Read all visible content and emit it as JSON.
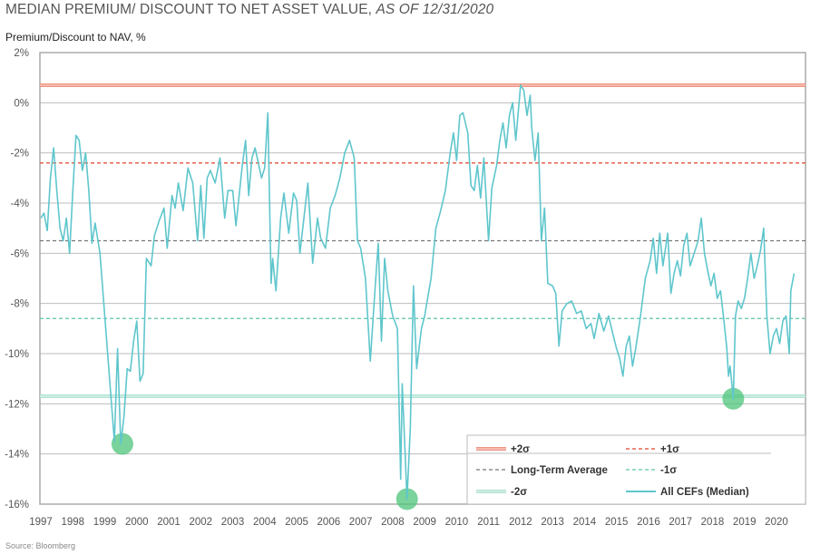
{
  "title": {
    "main": "MEDIAN PREMIUM/ DISCOUNT TO NET ASSET VALUE, ",
    "italic": "AS OF 12/31/2020"
  },
  "source": "Source: Bloomberg",
  "chart_data": {
    "type": "line",
    "title": "MEDIAN PREMIUM/ DISCOUNT TO NET ASSET VALUE, AS OF 12/31/2020",
    "ylabel": "Premium/Discount to NAV, %",
    "xlabel": "",
    "ylim": [
      -16,
      2
    ],
    "xlim": [
      1997,
      2020.9
    ],
    "grid": true,
    "legend_position": "bottom-right",
    "y_ticks": [
      "2%",
      "0%",
      "-2%",
      "-4%",
      "-6%",
      "-8%",
      "-10%",
      "-12%",
      "-14%",
      "-16%"
    ],
    "y_tick_values": [
      2,
      0,
      -2,
      -4,
      -6,
      -8,
      -10,
      -12,
      -14,
      -16
    ],
    "x_ticks": [
      "1997",
      "1998",
      "1999",
      "2000",
      "2001",
      "2002",
      "2003",
      "2004",
      "2005",
      "2006",
      "2007",
      "2008",
      "2009",
      "2010",
      "2011",
      "2012",
      "2013",
      "2014",
      "2015",
      "2016",
      "2017",
      "2018",
      "2019",
      "2020"
    ],
    "colors": {
      "plus2": "#e8735a",
      "plus1": "#e0452d",
      "avg": "#777777",
      "minus1": "#5cc4a8",
      "minus2": "#9ad9c6",
      "series": "#5fc6cc",
      "highlight": "#4cc47a",
      "grid": "#bdbdbd"
    },
    "reference_lines": [
      {
        "name": "+2σ",
        "value": 0.7,
        "style": "double"
      },
      {
        "name": "+1σ",
        "value": -2.4,
        "style": "dashed"
      },
      {
        "name": "Long-Term Average",
        "value": -5.5,
        "style": "dashed"
      },
      {
        "name": "-1σ",
        "value": -8.6,
        "style": "dashed"
      },
      {
        "name": "-2σ",
        "value": -11.7,
        "style": "double"
      }
    ],
    "series": [
      {
        "name": "All CEFs (Median)",
        "x": [
          1997.0,
          1997.1,
          1997.2,
          1997.3,
          1997.4,
          1997.5,
          1997.6,
          1997.7,
          1997.8,
          1997.9,
          1998.0,
          1998.1,
          1998.2,
          1998.3,
          1998.4,
          1998.5,
          1998.6,
          1998.7,
          1998.85,
          1999.0,
          1999.15,
          1999.3,
          1999.4,
          1999.5,
          1999.6,
          1999.7,
          1999.8,
          1999.9,
          2000.0,
          2000.1,
          2000.2,
          2000.3,
          2000.45,
          2000.55,
          2000.7,
          2000.85,
          2000.95,
          2001.1,
          2001.2,
          2001.3,
          2001.45,
          2001.6,
          2001.75,
          2001.9,
          2002.0,
          2002.1,
          2002.2,
          2002.3,
          2002.45,
          2002.6,
          2002.75,
          2002.85,
          2003.0,
          2003.1,
          2003.3,
          2003.4,
          2003.5,
          2003.6,
          2003.7,
          2003.9,
          2004.0,
          2004.1,
          2004.2,
          2004.25,
          2004.35,
          2004.5,
          2004.6,
          2004.75,
          2004.9,
          2005.0,
          2005.1,
          2005.2,
          2005.35,
          2005.5,
          2005.65,
          2005.75,
          2005.9,
          2006.05,
          2006.2,
          2006.35,
          2006.5,
          2006.65,
          2006.8,
          2006.9,
          2007.0,
          2007.15,
          2007.3,
          2007.45,
          2007.55,
          2007.65,
          2007.75,
          2007.85,
          2008.0,
          2008.15,
          2008.25,
          2008.3,
          2008.45,
          2008.55,
          2008.65,
          2008.75,
          2008.9,
          2009.0,
          2009.2,
          2009.35,
          2009.5,
          2009.65,
          2009.8,
          2009.9,
          2010.0,
          2010.1,
          2010.2,
          2010.35,
          2010.45,
          2010.55,
          2010.65,
          2010.75,
          2010.85,
          2011.0,
          2011.1,
          2011.25,
          2011.35,
          2011.45,
          2011.55,
          2011.65,
          2011.75,
          2011.85,
          2012.0,
          2012.1,
          2012.2,
          2012.3,
          2012.35,
          2012.45,
          2012.55,
          2012.65,
          2012.75,
          2012.85,
          2013.0,
          2013.1,
          2013.2,
          2013.3,
          2013.45,
          2013.6,
          2013.75,
          2013.9,
          2014.05,
          2014.2,
          2014.3,
          2014.45,
          2014.6,
          2014.75,
          2014.9,
          2015.0,
          2015.1,
          2015.2,
          2015.3,
          2015.4,
          2015.5,
          2015.6,
          2015.75,
          2015.9,
          2016.05,
          2016.15,
          2016.25,
          2016.35,
          2016.45,
          2016.6,
          2016.7,
          2016.8,
          2016.9,
          2017.0,
          2017.1,
          2017.2,
          2017.3,
          2017.45,
          2017.55,
          2017.65,
          2017.75,
          2017.85,
          2017.95,
          2018.05,
          2018.15,
          2018.25,
          2018.35,
          2018.45,
          2018.5,
          2018.55,
          2018.65,
          2018.72,
          2018.8,
          2018.9,
          2019.0,
          2019.1,
          2019.2,
          2019.3,
          2019.4,
          2019.5,
          2019.6,
          2019.7,
          2019.8,
          2019.9,
          2020.0,
          2020.1,
          2020.2,
          2020.3,
          2020.4,
          2020.45,
          2020.55
        ],
        "values": [
          -4.6,
          -4.4,
          -5.1,
          -3.0,
          -1.8,
          -3.5,
          -5.0,
          -5.5,
          -4.6,
          -6.0,
          -3.5,
          -1.3,
          -1.5,
          -2.7,
          -2.0,
          -3.5,
          -5.6,
          -4.8,
          -6.0,
          -8.5,
          -11.0,
          -13.5,
          -9.8,
          -13.6,
          -12.5,
          -10.6,
          -10.7,
          -9.5,
          -8.7,
          -11.1,
          -10.8,
          -6.2,
          -6.5,
          -5.3,
          -4.7,
          -4.2,
          -5.8,
          -3.7,
          -4.2,
          -3.2,
          -4.3,
          -2.6,
          -3.2,
          -5.5,
          -3.3,
          -5.4,
          -3.0,
          -2.7,
          -3.2,
          -2.2,
          -4.6,
          -3.5,
          -3.5,
          -4.9,
          -2.5,
          -1.5,
          -3.7,
          -2.2,
          -1.8,
          -3.0,
          -2.6,
          -0.4,
          -7.2,
          -6.2,
          -7.5,
          -4.6,
          -3.6,
          -5.2,
          -3.6,
          -3.9,
          -6.0,
          -4.9,
          -3.2,
          -6.4,
          -4.6,
          -5.4,
          -5.8,
          -4.2,
          -3.7,
          -3.0,
          -2.0,
          -1.5,
          -2.2,
          -5.5,
          -5.8,
          -7.0,
          -10.3,
          -7.4,
          -5.6,
          -9.5,
          -6.2,
          -7.5,
          -8.5,
          -9.0,
          -15.0,
          -11.2,
          -15.8,
          -13.0,
          -7.3,
          -10.6,
          -9.0,
          -8.5,
          -7.0,
          -5.0,
          -4.3,
          -3.5,
          -2.0,
          -1.2,
          -2.3,
          -0.5,
          -0.4,
          -1.2,
          -3.3,
          -3.5,
          -2.5,
          -3.8,
          -2.2,
          -5.5,
          -3.4,
          -2.5,
          -1.5,
          -0.8,
          -1.8,
          -0.5,
          0.0,
          -1.5,
          0.7,
          0.5,
          -0.5,
          0.3,
          -1.0,
          -2.3,
          -1.2,
          -5.5,
          -4.2,
          -7.2,
          -7.3,
          -7.6,
          -9.7,
          -8.3,
          -8.0,
          -7.9,
          -8.4,
          -8.3,
          -9.0,
          -8.8,
          -9.4,
          -8.4,
          -9.1,
          -8.5,
          -9.3,
          -9.8,
          -10.2,
          -10.9,
          -9.7,
          -9.3,
          -10.5,
          -9.8,
          -8.5,
          -7.0,
          -6.3,
          -5.4,
          -6.8,
          -5.2,
          -6.5,
          -5.2,
          -7.6,
          -6.8,
          -6.3,
          -6.9,
          -5.7,
          -5.2,
          -6.5,
          -5.9,
          -5.5,
          -4.6,
          -6.0,
          -6.7,
          -7.3,
          -6.8,
          -7.8,
          -7.5,
          -8.6,
          -9.8,
          -10.9,
          -10.5,
          -11.8,
          -8.5,
          -7.9,
          -8.2,
          -7.8,
          -7.0,
          -6.0,
          -7.0,
          -6.5,
          -5.9,
          -5.0,
          -8.5,
          -10.0,
          -9.3,
          -9.0,
          -9.6,
          -8.7,
          -8.5,
          -10.0,
          -7.5,
          -6.8
        ]
      }
    ],
    "highlights": [
      {
        "x": 1999.55,
        "y": -13.6
      },
      {
        "x": 2008.45,
        "y": -15.8
      },
      {
        "x": 2018.65,
        "y": -11.8
      }
    ],
    "legend": [
      "+2σ",
      "+1σ",
      "Long-Term Average",
      "-1σ",
      "-2σ",
      "All CEFs (Median)"
    ]
  }
}
